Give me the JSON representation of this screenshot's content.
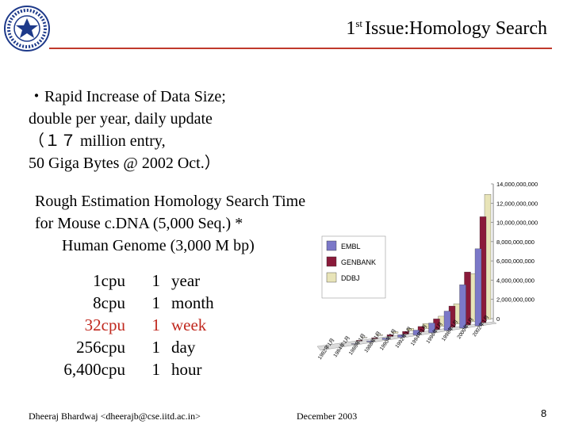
{
  "slide": {
    "title_sup": "st",
    "title_num": "1",
    "title_text": "Issue:Homology Search",
    "bullet_lines": [
      "・Rapid Increase of Data Size;",
      "double per year, daily update",
      "（１７ million entry,",
      "50 Giga Bytes @ 2002 Oct.）"
    ],
    "estimation_lines": [
      "Rough Estimation Homology Search Time",
      "for Mouse c.DNA (5,000 Seq.) *",
      "Human Genome (3,000 M bp)"
    ],
    "time_table": [
      {
        "cpus": "1cpu",
        "count": "1",
        "unit": "year",
        "highlight": false
      },
      {
        "cpus": "8cpu",
        "count": "1",
        "unit": "month",
        "highlight": false
      },
      {
        "cpus": "32cpu",
        "count": "1",
        "unit": "week",
        "highlight": true
      },
      {
        "cpus": "256cpu",
        "count": "1",
        "unit": "day",
        "highlight": false
      },
      {
        "cpus": "6,400cpu",
        "count": "1",
        "unit": "hour",
        "highlight": false
      }
    ],
    "footer_author": "Dheeraj Bhardwaj <dheerajb@cse.iitd.ac.in>",
    "footer_date": "December  2003",
    "page_number": "8"
  },
  "colors": {
    "accent_rule": "#c0392b",
    "highlight_text": "#c0281e",
    "embl": "#7b78c8",
    "genbank": "#8a1a3a",
    "ddbj": "#e8e4b8"
  },
  "chart_data": {
    "type": "bar",
    "title": "",
    "xlabel": "",
    "ylabel": "",
    "ylim": [
      0,
      14000000000
    ],
    "y_ticks": [
      "14,000,000,000",
      "12,000,000,000",
      "10,000,000,000",
      "8,000,000,000",
      "6,000,000,000",
      "4,000,000,000",
      "2,000,000,000",
      "0"
    ],
    "x_tick_labels": [
      "1982年1月",
      "1984年1月",
      "1986年1月",
      "1988年1月",
      "1990年1月",
      "1992年1月",
      "1994年1月",
      "1996年1月",
      "1998年1月",
      "2000年1月",
      "2002年1月"
    ],
    "legend": [
      "EMBL",
      "GENBANK",
      "DDBJ"
    ],
    "legend_position": "left",
    "series": [
      {
        "name": "EMBL",
        "values": [
          0,
          0,
          50000000,
          80000000,
          150000000,
          250000000,
          500000000,
          1000000000,
          2000000000,
          4500000000,
          8000000000
        ]
      },
      {
        "name": "GENBANK",
        "values": [
          0,
          0,
          60000000,
          90000000,
          170000000,
          280000000,
          550000000,
          1100000000,
          2200000000,
          5500000000,
          11000000000
        ]
      },
      {
        "name": "DDBJ",
        "values": [
          0,
          0,
          50000000,
          80000000,
          150000000,
          260000000,
          520000000,
          1050000000,
          2100000000,
          5000000000,
          13000000000
        ]
      }
    ]
  }
}
